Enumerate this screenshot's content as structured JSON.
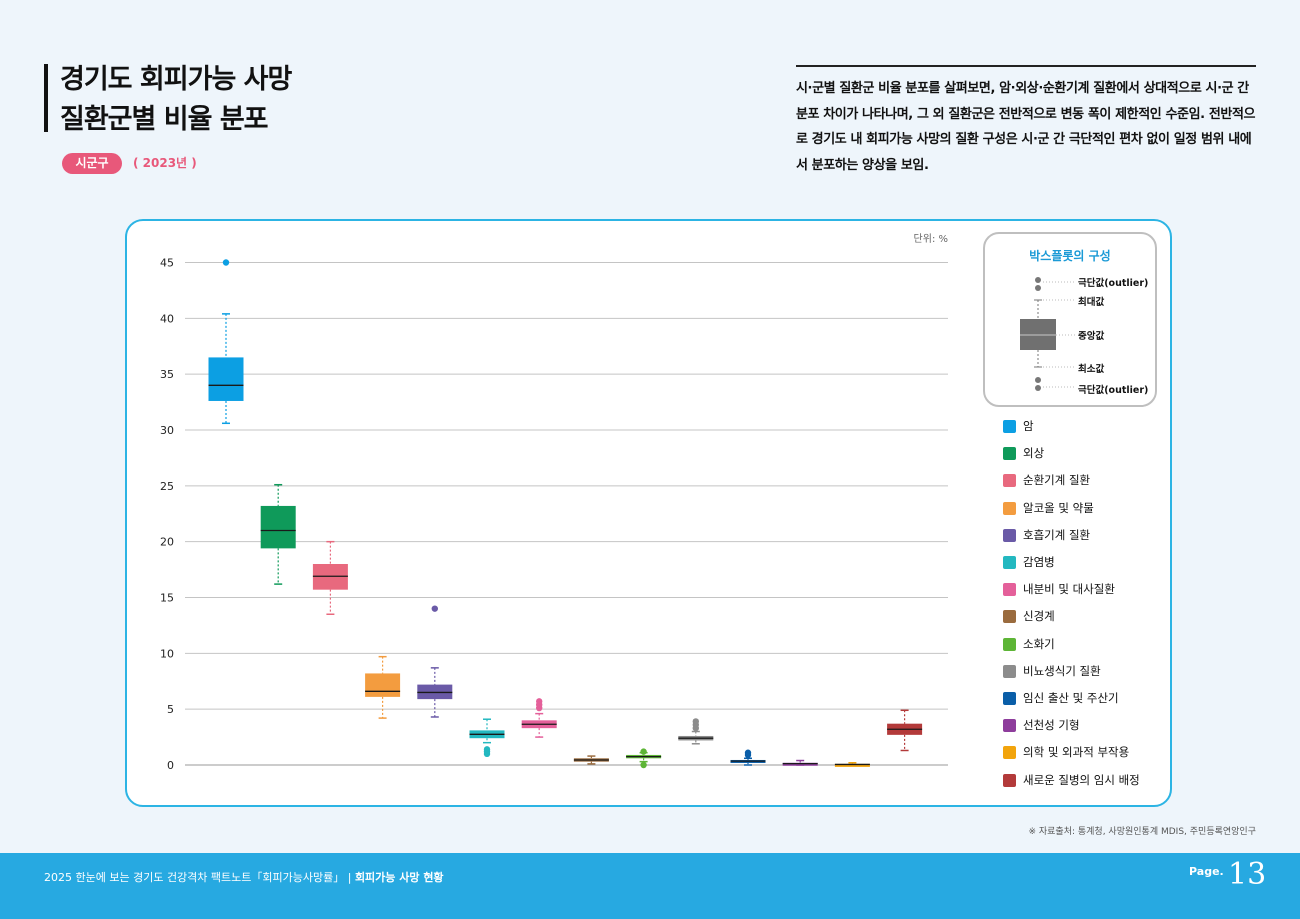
{
  "header": {
    "title_line1": "경기도 회피가능 사망",
    "title_line2": "질환군별 비율 분포",
    "badge": "시군구",
    "year": "( 2023년 )"
  },
  "description": "시·군별 질환군 비율 분포를 살펴보면, 암·외상·순환기계 질환에서 상대적으로 시·군 간 분포 차이가 나타나며, 그 외 질환군은 전반적으로 변동 폭이 제한적인 수준임. 전반적으로 경기도 내 회피가능 사망의 질환 구성은 시·군 간 극단적인 편차 없이 일정 범위 내에서 분포하는 양상을 보임.",
  "unit_label": "단위: %",
  "box_legend": {
    "title": "박스플롯의 구성",
    "outlier_top": "극단값(outlier)",
    "max": "최대값",
    "median": "중앙값",
    "min": "최소값",
    "outlier_bottom": "극단값(outlier)"
  },
  "chart_data": {
    "type": "boxplot",
    "title": "경기도 회피가능 사망 질환군별 비율 분포",
    "ylabel": "단위: %",
    "ylim": [
      0,
      45
    ],
    "yticks": [
      0,
      5,
      10,
      15,
      20,
      25,
      30,
      35,
      40,
      45
    ],
    "grid": true,
    "categories": [
      {
        "name": "암",
        "color": "#0c9fe3",
        "min": 30.6,
        "q1": 32.6,
        "median": 34.0,
        "q3": 36.5,
        "max": 40.4,
        "outliers": [
          45.0
        ]
      },
      {
        "name": "외상",
        "color": "#0f9a5a",
        "min": 16.2,
        "q1": 19.4,
        "median": 21.0,
        "q3": 23.2,
        "max": 25.1,
        "outliers": []
      },
      {
        "name": "순환기계 질환",
        "color": "#e8697e",
        "min": 13.5,
        "q1": 15.7,
        "median": 16.9,
        "q3": 18.0,
        "max": 20.0,
        "outliers": []
      },
      {
        "name": "알코올 및 약물",
        "color": "#f39c3f",
        "min": 4.2,
        "q1": 6.1,
        "median": 6.6,
        "q3": 8.2,
        "max": 9.7,
        "outliers": []
      },
      {
        "name": "호흡기계 질환",
        "color": "#6a5aa7",
        "min": 4.3,
        "q1": 5.9,
        "median": 6.5,
        "q3": 7.2,
        "max": 8.7,
        "outliers": [
          14.0
        ]
      },
      {
        "name": "감염병",
        "color": "#23b8c0",
        "min": 2.0,
        "q1": 2.4,
        "median": 2.75,
        "q3": 3.1,
        "max": 4.1,
        "outliers": [
          1.4,
          1.2,
          1.0
        ]
      },
      {
        "name": "내분비 및 대사질환",
        "color": "#e4609a",
        "min": 2.5,
        "q1": 3.3,
        "median": 3.65,
        "q3": 4.0,
        "max": 4.6,
        "outliers": [
          5.1,
          5.4,
          5.7
        ]
      },
      {
        "name": "신경계",
        "color": "#9a6b3e",
        "min": 0.1,
        "q1": 0.3,
        "median": 0.45,
        "q3": 0.6,
        "max": 0.8,
        "outliers": []
      },
      {
        "name": "소화기",
        "color": "#5db536",
        "min": 0.3,
        "q1": 0.6,
        "median": 0.75,
        "q3": 0.9,
        "max": 1.1,
        "outliers": [
          1.2,
          0.0
        ]
      },
      {
        "name": "비뇨생식기 질환",
        "color": "#8c8c8c",
        "min": 1.9,
        "q1": 2.2,
        "median": 2.4,
        "q3": 2.6,
        "max": 3.0,
        "outliers": [
          3.3,
          3.6,
          3.9
        ]
      },
      {
        "name": "임신 출산 및 주산기",
        "color": "#0a5ea8",
        "min": 0.0,
        "q1": 0.25,
        "median": 0.35,
        "q3": 0.45,
        "max": 0.6,
        "outliers": [
          0.9,
          1.1
        ]
      },
      {
        "name": "선천성 기형",
        "color": "#8e3d9c",
        "min": 0.0,
        "q1": 0.05,
        "median": 0.12,
        "q3": 0.2,
        "max": 0.4,
        "outliers": []
      },
      {
        "name": "의학 및 외과적 부작용",
        "color": "#f2a40c",
        "min": 0.0,
        "q1": 0.0,
        "median": 0.05,
        "q3": 0.1,
        "max": 0.2,
        "outliers": []
      },
      {
        "name": "새로운 질병의 임시 배정",
        "color": "#b33a3a",
        "min": 1.3,
        "q1": 2.7,
        "median": 3.2,
        "q3": 3.7,
        "max": 4.9,
        "outliers": []
      }
    ]
  },
  "source": "※ 자료출처: 통계청, 사망원인통계 MDIS, 주민등록연앙인구",
  "footer": {
    "text": "2025 한눈에 보는 경기도 건강격차 팩트노트「회피가능사망률」 | ",
    "section": "회피가능 사망 현황",
    "page_label": "Page.",
    "page_number": "13"
  }
}
